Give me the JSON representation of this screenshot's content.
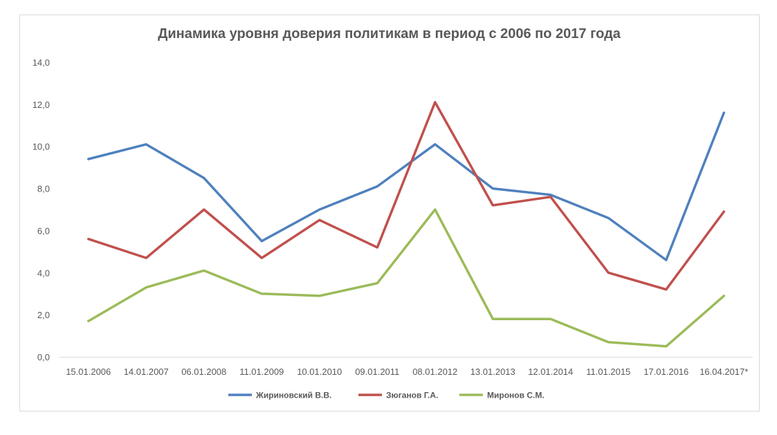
{
  "chart_data": {
    "type": "line",
    "title": "Динамика уровня доверия политикам в период с 2006 по 2017 года",
    "xlabel": "",
    "ylabel": "",
    "ylim": [
      0,
      14
    ],
    "yticks": [
      "0,0",
      "2,0",
      "4,0",
      "6,0",
      "8,0",
      "10,0",
      "12,0",
      "14,0"
    ],
    "ytick_values": [
      0,
      2,
      4,
      6,
      8,
      10,
      12,
      14
    ],
    "grid": false,
    "legend_position": "bottom",
    "categories": [
      "15.01.2006",
      "14.01.2007",
      "06.01.2008",
      "11.01.2009",
      "10.01.2010",
      "09.01.2011",
      "08.01.2012",
      "13.01.2013",
      "12.01.2014",
      "11.01.2015",
      "17.01.2016",
      "16.04.2017*"
    ],
    "series": [
      {
        "name": "Жириновский В.В.",
        "color": "#4f81bd",
        "values": [
          9.4,
          10.1,
          8.5,
          5.5,
          7.0,
          8.1,
          10.1,
          8.0,
          7.7,
          6.6,
          4.6,
          11.6
        ]
      },
      {
        "name": "Зюганов Г.А.",
        "color": "#c0504d",
        "values": [
          5.6,
          4.7,
          7.0,
          4.7,
          6.5,
          5.2,
          12.1,
          7.2,
          7.6,
          4.0,
          3.2,
          6.9
        ]
      },
      {
        "name": "Миронов С.М.",
        "color": "#9bbb59",
        "values": [
          1.7,
          3.3,
          4.1,
          3.0,
          2.9,
          3.5,
          7.0,
          1.8,
          1.8,
          0.7,
          0.5,
          2.9
        ]
      }
    ]
  }
}
